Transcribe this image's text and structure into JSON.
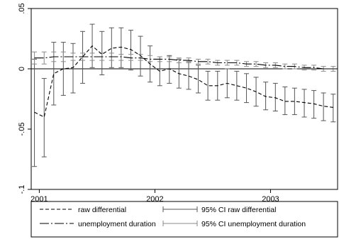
{
  "chart_data": {
    "type": "line",
    "title": "",
    "xlabel": "",
    "ylabel": "",
    "xlim": [
      2000.93,
      2003.58
    ],
    "ylim": [
      -0.1,
      0.05
    ],
    "x_ticks": [
      {
        "value": 2001,
        "label": "2001"
      },
      {
        "value": 2002,
        "label": "2002"
      },
      {
        "value": 2003,
        "label": "2003"
      }
    ],
    "y_ticks": [
      {
        "value": 0.05,
        "label": ".05"
      },
      {
        "value": 0,
        "label": "0"
      },
      {
        "value": -0.05,
        "label": "-.05"
      },
      {
        "value": -0.1,
        "label": "-.1"
      }
    ],
    "reference_line": 0,
    "legend": {
      "position": "bottom",
      "columns": 2,
      "entries": [
        {
          "label": "raw differential",
          "key": "raw",
          "kind": "line"
        },
        {
          "label": "95% CI raw differential",
          "key": "raw_ci",
          "kind": "ci"
        },
        {
          "label": "unemployment duration",
          "key": "dur",
          "kind": "line"
        },
        {
          "label": "95% CI unemployment duration",
          "key": "dur_ci",
          "kind": "ci"
        }
      ]
    },
    "series": [
      {
        "key": "raw",
        "name": "raw differential",
        "style": "short-dash",
        "color": "#000000",
        "ci_color": "#555555",
        "points": [
          {
            "x": 2000.958,
            "y": -0.036,
            "lo": -0.081,
            "hi": 0.008
          },
          {
            "x": 2001.042,
            "y": -0.04,
            "lo": -0.073,
            "hi": -0.008
          },
          {
            "x": 2001.125,
            "y": -0.004,
            "lo": -0.03,
            "hi": 0.022
          },
          {
            "x": 2001.208,
            "y": 0.0,
            "lo": -0.022,
            "hi": 0.022
          },
          {
            "x": 2001.292,
            "y": 0.001,
            "lo": -0.02,
            "hi": 0.021
          },
          {
            "x": 2001.375,
            "y": 0.01,
            "lo": -0.012,
            "hi": 0.031
          },
          {
            "x": 2001.458,
            "y": 0.019,
            "lo": 0.001,
            "hi": 0.037
          },
          {
            "x": 2001.542,
            "y": 0.012,
            "lo": -0.005,
            "hi": 0.031
          },
          {
            "x": 2001.625,
            "y": 0.017,
            "lo": 0.001,
            "hi": 0.034
          },
          {
            "x": 2001.708,
            "y": 0.018,
            "lo": 0.001,
            "hi": 0.034
          },
          {
            "x": 2001.792,
            "y": 0.016,
            "lo": -0.001,
            "hi": 0.032
          },
          {
            "x": 2001.875,
            "y": 0.011,
            "lo": -0.006,
            "hi": 0.027
          },
          {
            "x": 2001.958,
            "y": 0.004,
            "lo": -0.011,
            "hi": 0.019
          },
          {
            "x": 2002.042,
            "y": -0.002,
            "lo": -0.014,
            "hi": 0.01
          },
          {
            "x": 2002.125,
            "y": 0.0,
            "lo": -0.012,
            "hi": 0.011
          },
          {
            "x": 2002.208,
            "y": -0.004,
            "lo": -0.016,
            "hi": 0.008
          },
          {
            "x": 2002.292,
            "y": -0.006,
            "lo": -0.017,
            "hi": 0.006
          },
          {
            "x": 2002.375,
            "y": -0.009,
            "lo": -0.02,
            "hi": 0.003
          },
          {
            "x": 2002.458,
            "y": -0.014,
            "lo": -0.026,
            "hi": -0.002
          },
          {
            "x": 2002.542,
            "y": -0.014,
            "lo": -0.026,
            "hi": -0.002
          },
          {
            "x": 2002.625,
            "y": -0.012,
            "lo": -0.024,
            "hi": 0.0
          },
          {
            "x": 2002.708,
            "y": -0.014,
            "lo": -0.026,
            "hi": -0.002
          },
          {
            "x": 2002.792,
            "y": -0.016,
            "lo": -0.028,
            "hi": -0.004
          },
          {
            "x": 2002.875,
            "y": -0.019,
            "lo": -0.031,
            "hi": -0.007
          },
          {
            "x": 2002.958,
            "y": -0.023,
            "lo": -0.034,
            "hi": -0.011
          },
          {
            "x": 2003.042,
            "y": -0.024,
            "lo": -0.035,
            "hi": -0.012
          },
          {
            "x": 2003.125,
            "y": -0.027,
            "lo": -0.038,
            "hi": -0.015
          },
          {
            "x": 2003.208,
            "y": -0.027,
            "lo": -0.038,
            "hi": -0.016
          },
          {
            "x": 2003.292,
            "y": -0.028,
            "lo": -0.04,
            "hi": -0.017
          },
          {
            "x": 2003.375,
            "y": -0.029,
            "lo": -0.041,
            "hi": -0.018
          },
          {
            "x": 2003.458,
            "y": -0.031,
            "lo": -0.043,
            "hi": -0.02
          },
          {
            "x": 2003.542,
            "y": -0.032,
            "lo": -0.044,
            "hi": -0.021
          }
        ]
      },
      {
        "key": "dur",
        "name": "unemployment duration",
        "style": "long-dash-dot",
        "color": "#000000",
        "ci_color": "#8a8a8a",
        "points": [
          {
            "x": 2000.958,
            "y": 0.009,
            "lo": 0.004,
            "hi": 0.014
          },
          {
            "x": 2001.042,
            "y": 0.009,
            "lo": 0.004,
            "hi": 0.014
          },
          {
            "x": 2001.125,
            "y": 0.01,
            "lo": 0.006,
            "hi": 0.014
          },
          {
            "x": 2001.208,
            "y": 0.01,
            "lo": 0.006,
            "hi": 0.014
          },
          {
            "x": 2001.292,
            "y": 0.01,
            "lo": 0.007,
            "hi": 0.013
          },
          {
            "x": 2001.375,
            "y": 0.01,
            "lo": 0.007,
            "hi": 0.013
          },
          {
            "x": 2001.458,
            "y": 0.01,
            "lo": 0.007,
            "hi": 0.013
          },
          {
            "x": 2001.542,
            "y": 0.01,
            "lo": 0.007,
            "hi": 0.013
          },
          {
            "x": 2001.625,
            "y": 0.01,
            "lo": 0.007,
            "hi": 0.013
          },
          {
            "x": 2001.708,
            "y": 0.01,
            "lo": 0.007,
            "hi": 0.012
          },
          {
            "x": 2001.792,
            "y": 0.009,
            "lo": 0.007,
            "hi": 0.012
          },
          {
            "x": 2001.875,
            "y": 0.009,
            "lo": 0.007,
            "hi": 0.012
          },
          {
            "x": 2001.958,
            "y": 0.008,
            "lo": 0.006,
            "hi": 0.011
          },
          {
            "x": 2002.042,
            "y": 0.008,
            "lo": 0.006,
            "hi": 0.01
          },
          {
            "x": 2002.125,
            "y": 0.008,
            "lo": 0.006,
            "hi": 0.01
          },
          {
            "x": 2002.208,
            "y": 0.007,
            "lo": 0.005,
            "hi": 0.009
          },
          {
            "x": 2002.292,
            "y": 0.007,
            "lo": 0.005,
            "hi": 0.009
          },
          {
            "x": 2002.375,
            "y": 0.006,
            "lo": 0.004,
            "hi": 0.008
          },
          {
            "x": 2002.458,
            "y": 0.006,
            "lo": 0.004,
            "hi": 0.008
          },
          {
            "x": 2002.542,
            "y": 0.005,
            "lo": 0.003,
            "hi": 0.007
          },
          {
            "x": 2002.625,
            "y": 0.005,
            "lo": 0.003,
            "hi": 0.007
          },
          {
            "x": 2002.708,
            "y": 0.005,
            "lo": 0.003,
            "hi": 0.007
          },
          {
            "x": 2002.792,
            "y": 0.004,
            "lo": 0.002,
            "hi": 0.006
          },
          {
            "x": 2002.875,
            "y": 0.004,
            "lo": 0.002,
            "hi": 0.006
          },
          {
            "x": 2002.958,
            "y": 0.003,
            "lo": 0.001,
            "hi": 0.005
          },
          {
            "x": 2003.042,
            "y": 0.003,
            "lo": 0.001,
            "hi": 0.005
          },
          {
            "x": 2003.125,
            "y": 0.002,
            "lo": 0.0,
            "hi": 0.004
          },
          {
            "x": 2003.208,
            "y": 0.002,
            "lo": 0.0,
            "hi": 0.004
          },
          {
            "x": 2003.292,
            "y": 0.001,
            "lo": -0.001,
            "hi": 0.003
          },
          {
            "x": 2003.375,
            "y": 0.001,
            "lo": -0.001,
            "hi": 0.003
          },
          {
            "x": 2003.458,
            "y": 0.0,
            "lo": -0.002,
            "hi": 0.002
          },
          {
            "x": 2003.542,
            "y": 0.0,
            "lo": -0.002,
            "hi": 0.002
          }
        ]
      }
    ]
  }
}
